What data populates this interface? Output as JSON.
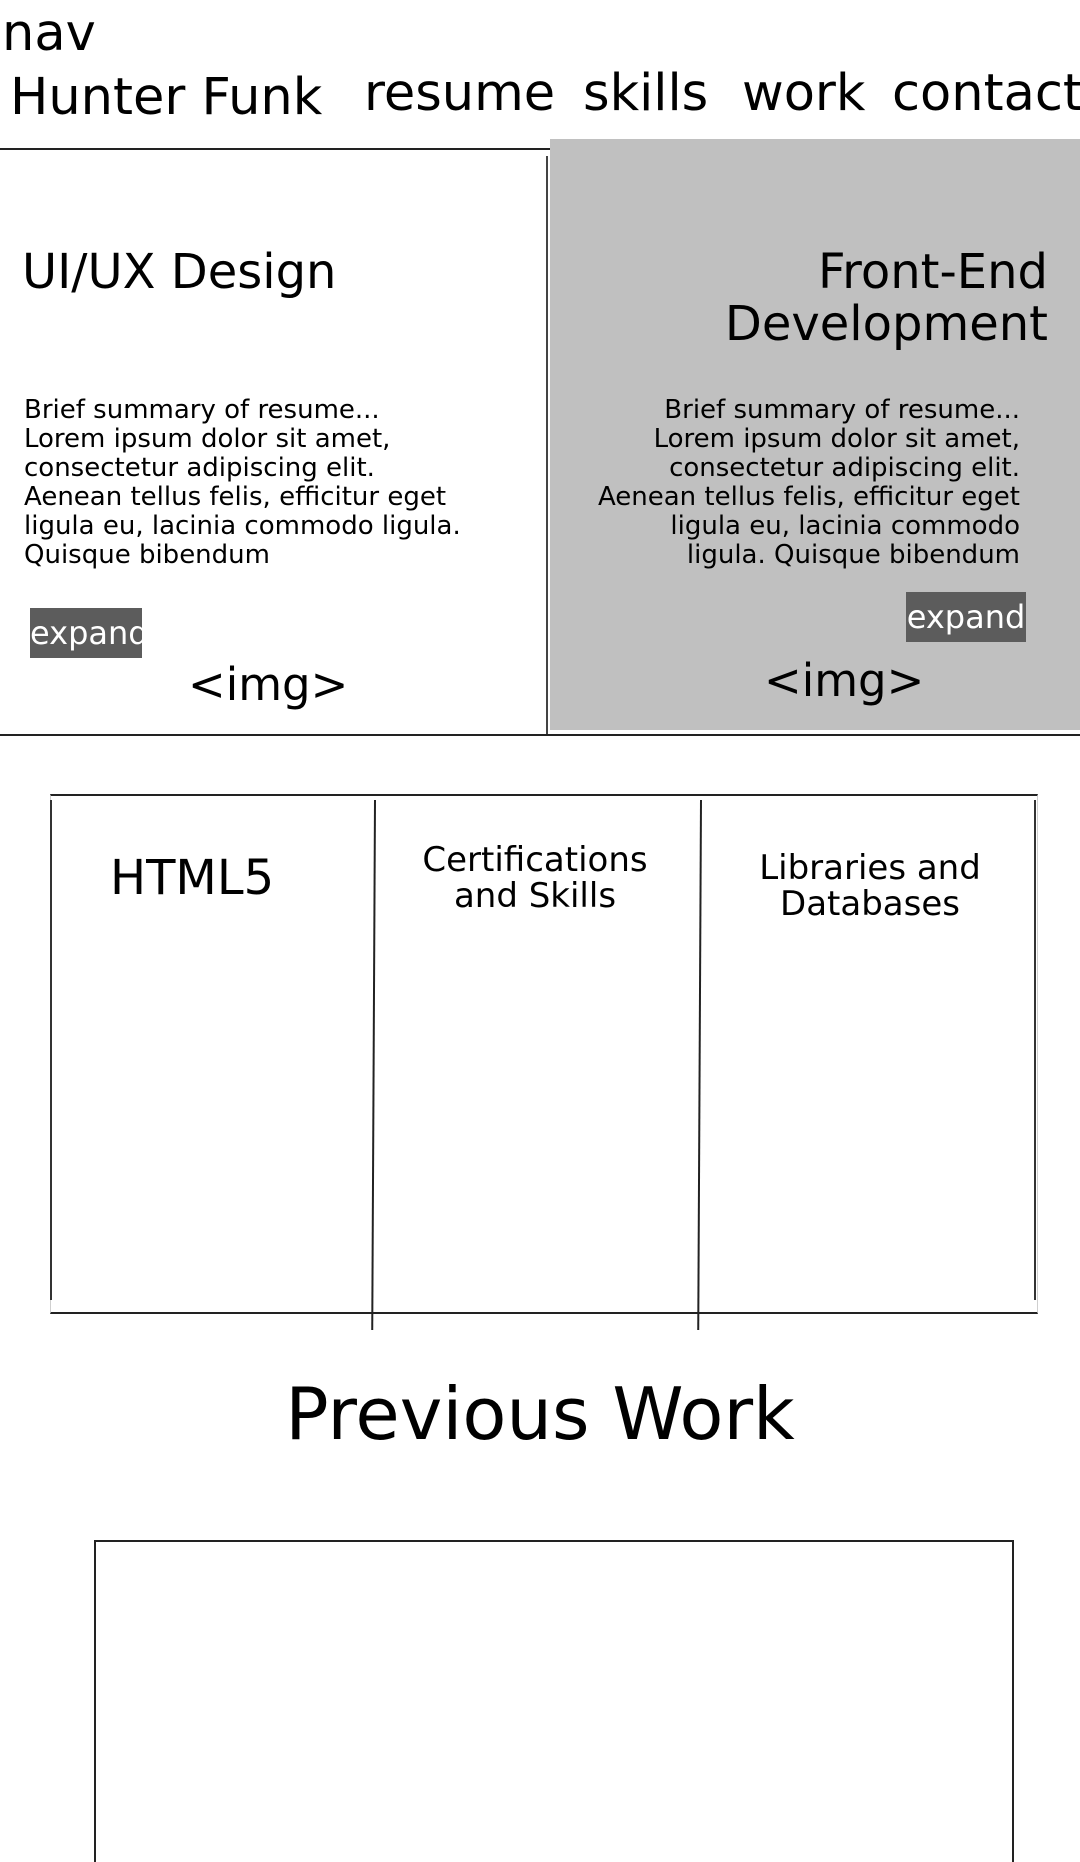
{
  "nav": {
    "label": "nav",
    "brand": "Hunter Funk",
    "links": [
      "resume",
      "skills",
      "work",
      "contact"
    ]
  },
  "hero": {
    "left": {
      "title": "UI/UX Design",
      "body_lines": [
        "Brief summary of resume...",
        "Lorem ipsum dolor sit amet,",
        "consectetur adipiscing elit.",
        "Aenean tellus felis, efficitur eget",
        "ligula eu, lacinia commodo ligula.",
        "Quisque bibendum"
      ],
      "expand_label": "expand",
      "img_placeholder": "<img>"
    },
    "right": {
      "title_lines": [
        "Front-End",
        "Development"
      ],
      "body_lines": [
        "Brief summary of resume...",
        "Lorem ipsum dolor sit amet,",
        "consectetur adipiscing elit.",
        "Aenean tellus felis, efficitur eget",
        "ligula eu, lacinia commodo",
        "ligula. Quisque bibendum"
      ],
      "expand_label": "expand",
      "img_placeholder": "<img>"
    }
  },
  "skills": {
    "col1": [
      "HTML5"
    ],
    "col2": [
      "Certifications",
      "and Skills"
    ],
    "col3": [
      "Libraries and",
      "Databases"
    ]
  },
  "previous_work": {
    "title": "Previous Work"
  },
  "colors": {
    "highlight_card": "#c0c0c0",
    "expand_button": "#5c5c5c"
  }
}
